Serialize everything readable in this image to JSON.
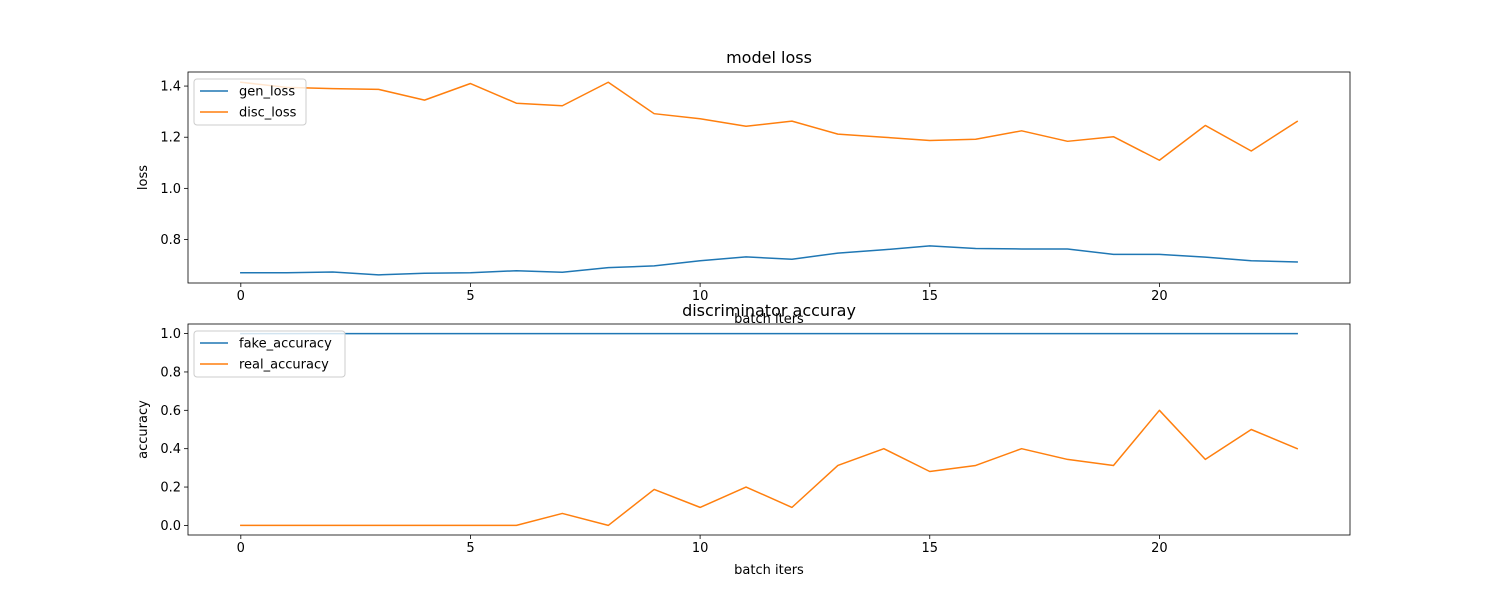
{
  "chart_data": [
    {
      "type": "line",
      "title": "model loss",
      "xlabel": "batch iters",
      "ylabel": "loss",
      "xlim": [
        -1.15,
        24.15
      ],
      "ylim": [
        0.63,
        1.455
      ],
      "x": [
        0,
        1,
        2,
        3,
        4,
        5,
        6,
        7,
        8,
        9,
        10,
        11,
        12,
        13,
        14,
        15,
        16,
        17,
        18,
        19,
        20,
        21,
        22,
        23
      ],
      "xticks": [
        0,
        5,
        10,
        15,
        20
      ],
      "xtick_labels": [
        "0",
        "5",
        "10",
        "15",
        "20"
      ],
      "yticks": [
        0.8,
        1.0,
        1.2,
        1.4
      ],
      "ytick_labels": [
        "0.8",
        "1.0",
        "1.2",
        "1.4"
      ],
      "legend_position": "top-left",
      "grid": false,
      "series": [
        {
          "name": "gen_loss",
          "color": "#1f77b4",
          "values": [
            0.67,
            0.67,
            0.673,
            0.662,
            0.668,
            0.67,
            0.678,
            0.672,
            0.69,
            0.697,
            0.717,
            0.732,
            0.723,
            0.747,
            0.76,
            0.775,
            0.765,
            0.763,
            0.763,
            0.742,
            0.742,
            0.731,
            0.717,
            0.712
          ]
        },
        {
          "name": "disc_loss",
          "color": "#ff7f0e",
          "values": [
            1.415,
            1.395,
            1.39,
            1.387,
            1.345,
            1.41,
            1.333,
            1.323,
            1.415,
            1.292,
            1.272,
            1.243,
            1.263,
            1.212,
            1.2,
            1.187,
            1.192,
            1.225,
            1.184,
            1.202,
            1.11,
            1.246,
            1.146,
            1.262
          ]
        }
      ]
    },
    {
      "type": "line",
      "title": "discriminator accuray",
      "xlabel": "batch iters",
      "ylabel": "accuracy",
      "xlim": [
        -1.15,
        24.15
      ],
      "ylim": [
        -0.05,
        1.05
      ],
      "x": [
        0,
        1,
        2,
        3,
        4,
        5,
        6,
        7,
        8,
        9,
        10,
        11,
        12,
        13,
        14,
        15,
        16,
        17,
        18,
        19,
        20,
        21,
        22,
        23
      ],
      "xticks": [
        0,
        5,
        10,
        15,
        20
      ],
      "xtick_labels": [
        "0",
        "5",
        "10",
        "15",
        "20"
      ],
      "yticks": [
        0.0,
        0.2,
        0.4,
        0.6,
        0.8,
        1.0
      ],
      "ytick_labels": [
        "0.0",
        "0.2",
        "0.4",
        "0.6",
        "0.8",
        "1.0"
      ],
      "legend_position": "top-left",
      "grid": false,
      "series": [
        {
          "name": "fake_accuracy",
          "color": "#1f77b4",
          "values": [
            1,
            1,
            1,
            1,
            1,
            1,
            1,
            1,
            1,
            1,
            1,
            1,
            1,
            1,
            1,
            1,
            1,
            1,
            1,
            1,
            1,
            1,
            1,
            1
          ]
        },
        {
          "name": "real_accuracy",
          "color": "#ff7f0e",
          "values": [
            0,
            0,
            0,
            0,
            0,
            0,
            0,
            0.0625,
            0,
            0.1875,
            0.094,
            0.2,
            0.094,
            0.3125,
            0.4,
            0.281,
            0.3125,
            0.4,
            0.344,
            0.3125,
            0.6,
            0.344,
            0.5,
            0.4
          ]
        }
      ]
    }
  ]
}
